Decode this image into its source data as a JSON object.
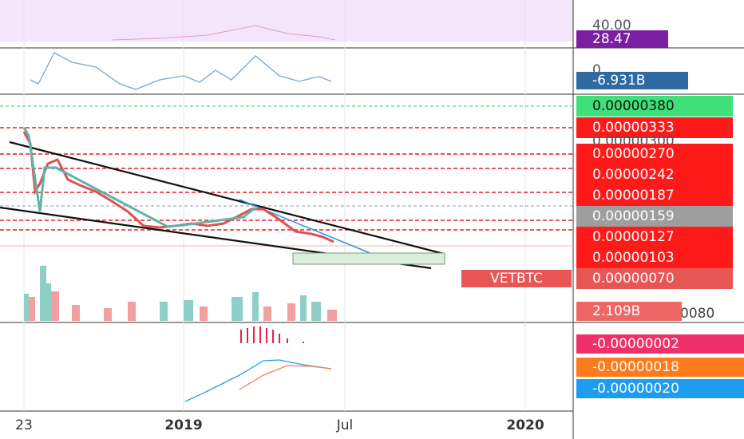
{
  "rsi": {
    "level": "40.00",
    "value": "28.47"
  },
  "oscillator": {
    "zero": "0",
    "value": "-6.931B"
  },
  "price_labels": [
    "0.00000380",
    "0.00000333",
    "0.00000300",
    "0.00000270",
    "0.00000242",
    "0.00000187",
    "0.00000159",
    "0.00000127",
    "0.00000103",
    "0.00000070"
  ],
  "symbol": "VETBTC",
  "volume": {
    "value": "2.109B",
    "scale": "0080"
  },
  "macd": [
    "-0.00000002",
    "-0.00000018",
    "-0.00000020"
  ],
  "x_axis": [
    "23",
    "2019",
    "Jul",
    "2020"
  ]
}
